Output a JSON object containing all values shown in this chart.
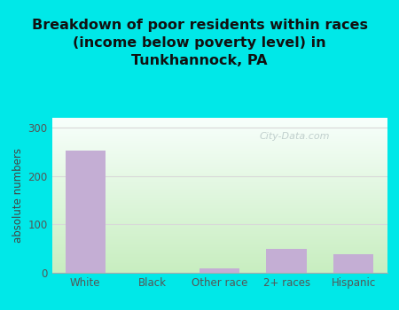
{
  "title": "Breakdown of poor residents within races\n(income below poverty level) in\nTunkhannock, PA",
  "categories": [
    "White",
    "Black",
    "Other race",
    "2+ races",
    "Hispanic"
  ],
  "values": [
    253,
    0,
    10,
    50,
    38
  ],
  "bar_color": "#c4aed4",
  "ylabel": "absolute numbers",
  "ylim": [
    0,
    320
  ],
  "yticks": [
    0,
    100,
    200,
    300
  ],
  "background_outer": "#00e8e8",
  "background_inner_top_color": "#f8fffc",
  "background_inner_bottom_color": "#c8eec0",
  "grid_color": "#d8d8d8",
  "title_color": "#111111",
  "title_fontsize": 11.5,
  "axis_label_fontsize": 8.5,
  "tick_label_fontsize": 8.5,
  "axis_label_color": "#444444",
  "tick_label_color": "#555555",
  "watermark": "City-Data.com",
  "watermark_color": "#b0c0c0",
  "watermark_alpha": 0.75
}
